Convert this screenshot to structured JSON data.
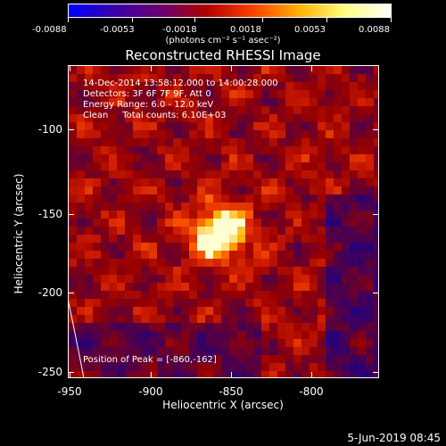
{
  "colorbar": {
    "tick_labels": [
      "-0.0088",
      "-0.0053",
      "-0.0018",
      "0.0018",
      "0.0053",
      "0.0088"
    ],
    "units_label": "(photons cm⁻² s⁻¹ asec⁻²)",
    "stops": [
      "#0000ff",
      "#3a00a8",
      "#6a0070",
      "#b00000",
      "#ff4000",
      "#ffb000",
      "#ffff80",
      "#ffffff"
    ]
  },
  "plot": {
    "title": "Reconstructed RHESSI Image",
    "info": {
      "time": "14-Dec-2014 13:58:12.000 to 14:00:28.000",
      "detectors": "Detectors: 3F 6F 7F 9F, Att 0",
      "energy": "Energy Range: 6.0 - 12.0 keV",
      "clean": "Clean     Total counts: 6.10E+03"
    },
    "peak_label": "Position of Peak = [-860,-162]",
    "xlabel": "Heliocentric X (arcsec)",
    "ylabel": "Heliocentric Y (arcsec)",
    "x_ticks": [
      "-950",
      "-900",
      "-850",
      "-800"
    ],
    "y_ticks": [
      "-100",
      "-150",
      "-200",
      "-250"
    ]
  },
  "footer": {
    "date": "5-Jun-2019 08:45"
  }
}
